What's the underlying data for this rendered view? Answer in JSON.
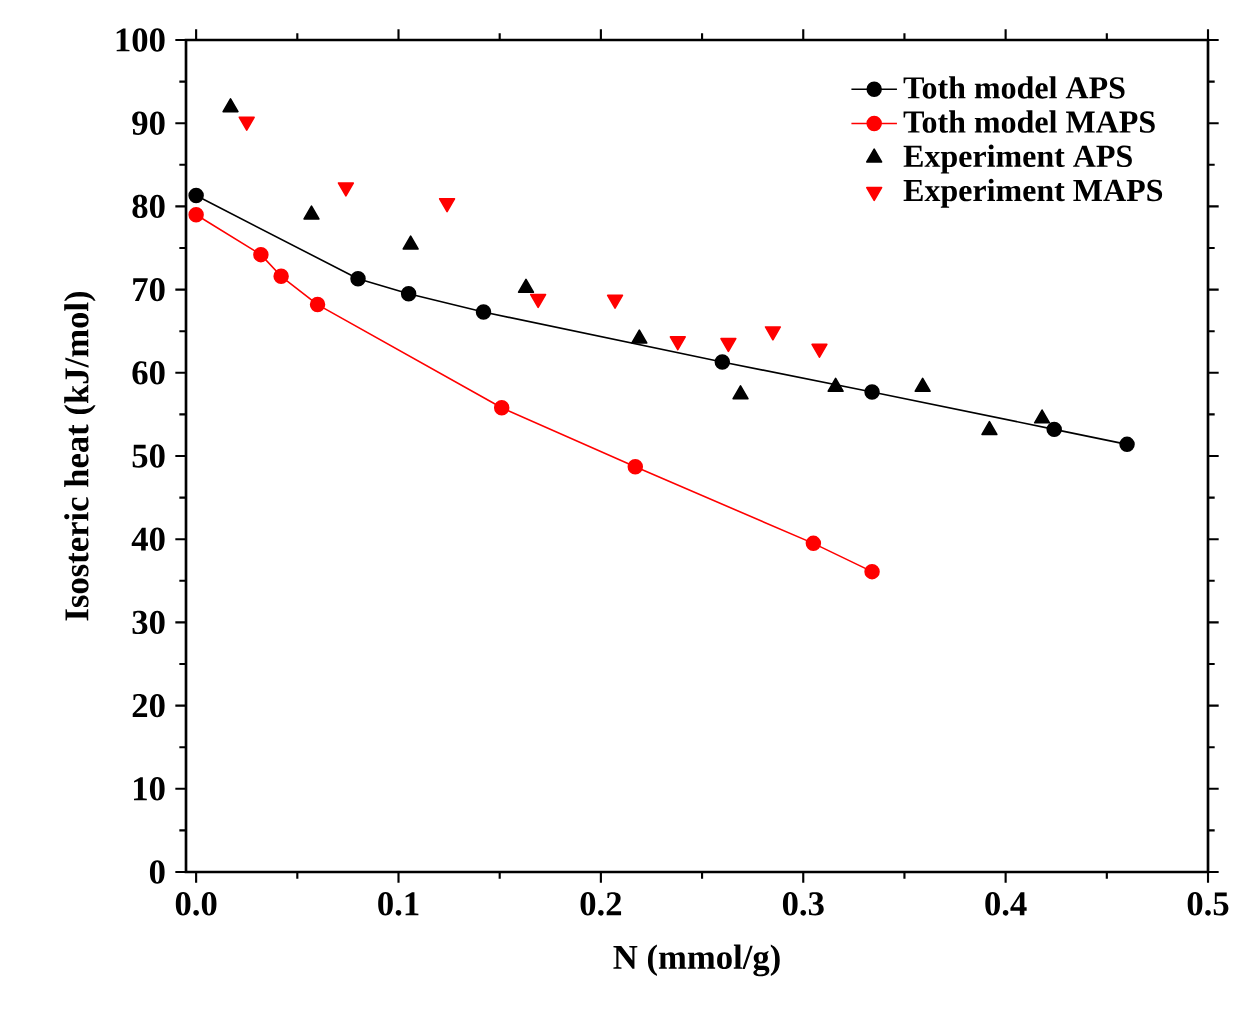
{
  "chart_data": {
    "type": "line",
    "xlabel": "N (mmol/g)",
    "ylabel": "Isosteric heat (kJ/mol)",
    "xlim": [
      -0.005,
      0.5
    ],
    "ylim": [
      0,
      100
    ],
    "xticks": [
      {
        "value": 0,
        "label": "0.0"
      },
      {
        "value": 0.1,
        "label": "0.1"
      },
      {
        "value": 0.2,
        "label": "0.2"
      },
      {
        "value": 0.3,
        "label": "0.3"
      },
      {
        "value": 0.4,
        "label": "0.4"
      },
      {
        "value": 0.5,
        "label": "0.5"
      }
    ],
    "yticks": [
      0,
      10,
      20,
      30,
      40,
      50,
      60,
      70,
      80,
      90,
      100
    ],
    "grid": false,
    "legend": "top right",
    "series": [
      {
        "name": "Toth model APS",
        "marker": "circle",
        "color": "#000000",
        "x": [
          0.0,
          0.08,
          0.105,
          0.142,
          0.26,
          0.334,
          0.424,
          0.46
        ],
        "values": [
          81.3,
          71.3,
          69.5,
          67.3,
          61.3,
          57.7,
          53.2,
          51.4
        ]
      },
      {
        "name": "Toth model MAPS",
        "marker": "circle",
        "color": "#ff0000",
        "x": [
          0.0,
          0.032,
          0.042,
          0.06,
          0.151,
          0.217,
          0.305,
          0.334
        ],
        "values": [
          79.0,
          74.2,
          71.6,
          68.2,
          55.8,
          48.7,
          39.5,
          36.1
        ]
      },
      {
        "name": "Experiment APS",
        "type": "scatter",
        "marker": "triangle",
        "color": "#000000",
        "x": [
          0.017,
          0.057,
          0.106,
          0.163,
          0.219,
          0.269,
          0.316,
          0.359,
          0.392,
          0.418
        ],
        "values": [
          91.9,
          79.0,
          75.4,
          70.2,
          64.1,
          57.4,
          58.3,
          58.3,
          53.1,
          54.5
        ]
      },
      {
        "name": "Experiment MAPS",
        "type": "scatter",
        "marker": "triangle_down",
        "color": "#ff0000",
        "x": [
          0.025,
          0.074,
          0.124,
          0.169,
          0.207,
          0.238,
          0.263,
          0.285,
          0.308
        ],
        "values": [
          90.2,
          82.3,
          80.4,
          68.9,
          68.8,
          63.8,
          63.6,
          65.0,
          62.9
        ]
      }
    ]
  }
}
